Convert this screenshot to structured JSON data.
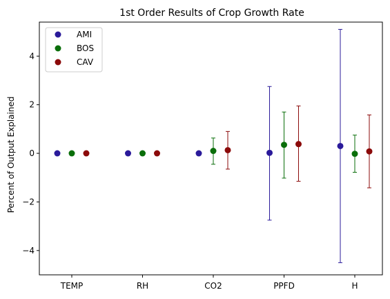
{
  "chart_data": {
    "type": "scatter",
    "title": "1st Order Results of Crop Growth Rate",
    "xlabel": "",
    "ylabel": "Percent of Output Explained",
    "categories": [
      "TEMP",
      "RH",
      "CO2",
      "PPFD",
      "H"
    ],
    "ylim": [
      -5.0,
      5.4
    ],
    "yticks": [
      -4,
      -2,
      0,
      2,
      4
    ],
    "ytick_labels": [
      "−4",
      "−2",
      "0",
      "2",
      "4"
    ],
    "grid": false,
    "legend_position": "top-left",
    "series": [
      {
        "name": "AMI",
        "color": "#2a1a9a",
        "values": [
          0.0,
          0.0,
          0.0,
          0.02,
          0.3
        ],
        "lower": [
          0.0,
          0.0,
          0.0,
          -2.75,
          -4.5
        ],
        "upper": [
          0.0,
          0.0,
          0.0,
          2.75,
          5.1
        ]
      },
      {
        "name": "BOS",
        "color": "#0a6e0a",
        "values": [
          0.0,
          0.0,
          0.1,
          0.35,
          -0.02
        ],
        "lower": [
          0.0,
          0.0,
          -0.45,
          -1.02,
          -0.78
        ],
        "upper": [
          0.0,
          0.0,
          0.63,
          1.7,
          0.75
        ]
      },
      {
        "name": "CAV",
        "color": "#8b0a0a",
        "values": [
          0.0,
          0.0,
          0.13,
          0.38,
          0.08
        ],
        "lower": [
          0.0,
          0.0,
          -0.65,
          -1.15,
          -1.42
        ],
        "upper": [
          0.0,
          0.0,
          0.9,
          1.95,
          1.58
        ]
      }
    ]
  }
}
